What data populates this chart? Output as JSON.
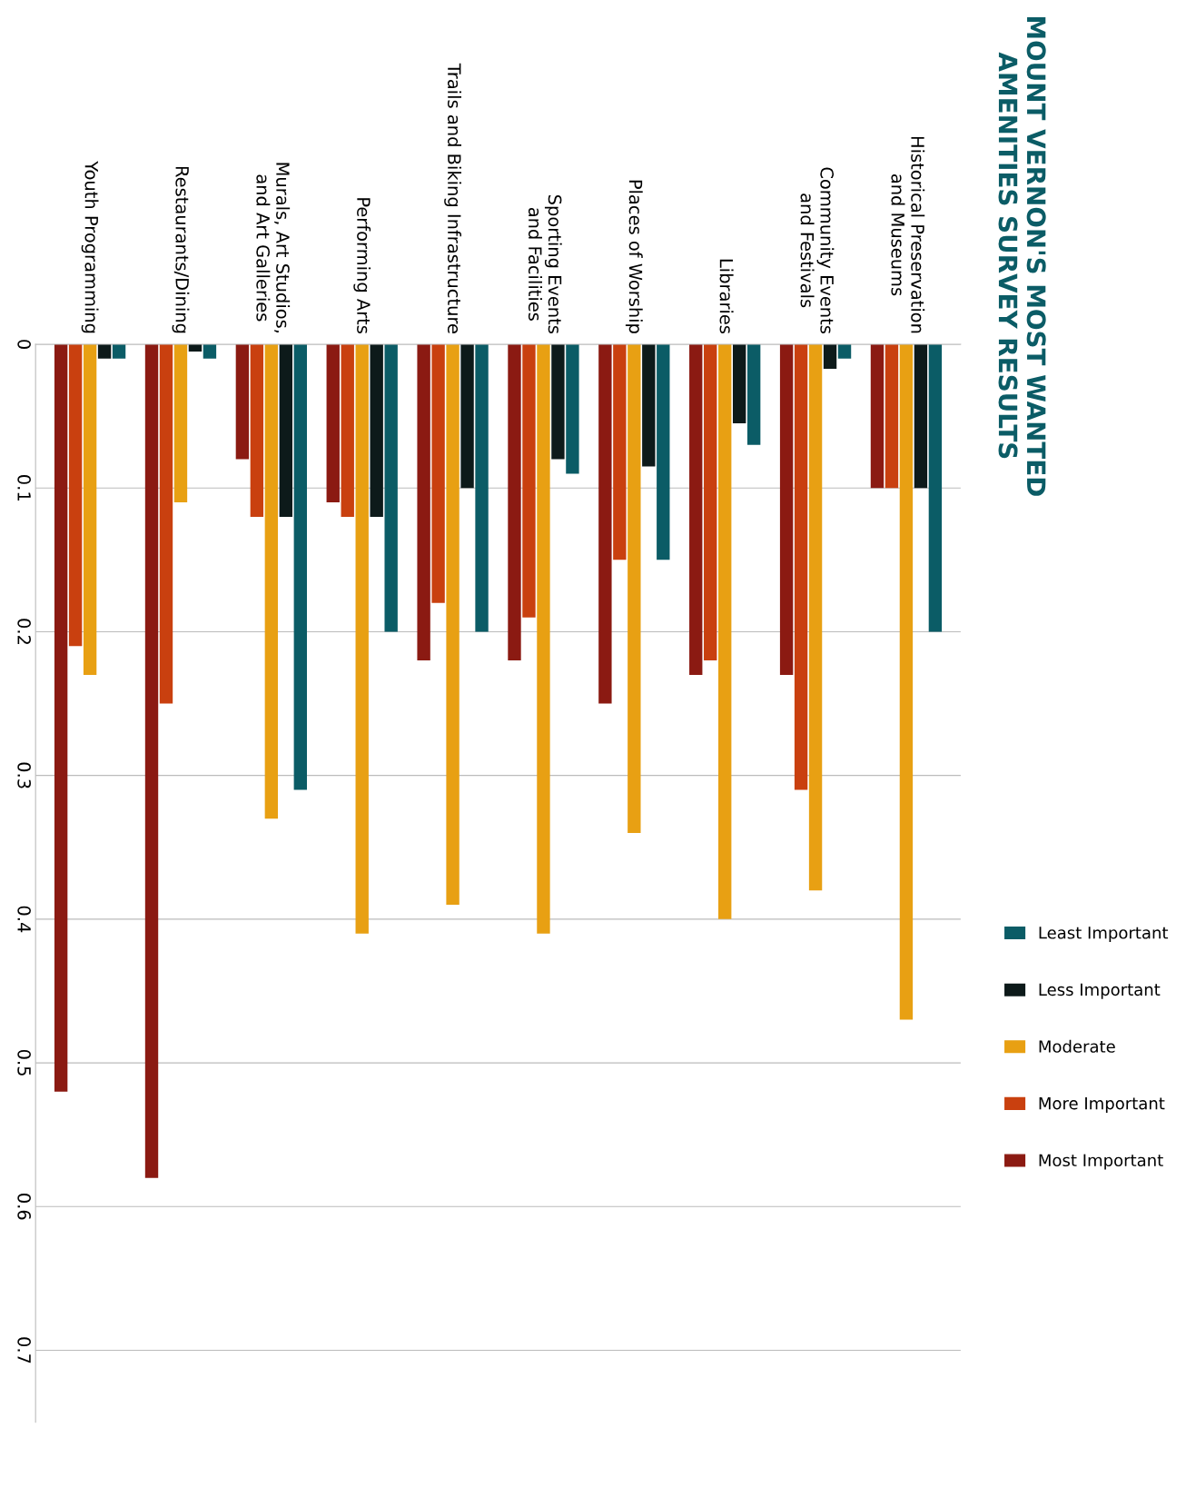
{
  "chart_data": {
    "type": "bar",
    "title": "MOUNT VERNON'S MOST WANTED\nAMENITIES SURVEY RESULTS",
    "categories": [
      "Youth Programming",
      "Restaurants/Dining",
      "Murals, Art Studios,\nand Art Galleries",
      "Performing Arts",
      "Trails and Biking Infrastructure",
      "Sporting Events\nand Facilities",
      "Places of Worship",
      "Libraries",
      "Community Events\nand Festivals",
      "Historical Preservation\nand Museums"
    ],
    "series": [
      {
        "name": "Most Important",
        "color": "#8b1a12",
        "values": [
          0.52,
          0.58,
          0.08,
          0.11,
          0.22,
          0.22,
          0.25,
          0.23,
          0.23,
          0.1
        ]
      },
      {
        "name": "More Important",
        "color": "#c9400f",
        "values": [
          0.21,
          0.25,
          0.12,
          0.12,
          0.18,
          0.19,
          0.15,
          0.22,
          0.31,
          0.1
        ]
      },
      {
        "name": "Moderate",
        "color": "#e8a013",
        "values": [
          0.23,
          0.11,
          0.33,
          0.41,
          0.39,
          0.41,
          0.34,
          0.4,
          0.38,
          0.47
        ]
      },
      {
        "name": "Less Important",
        "color": "#0d1a1a",
        "values": [
          0.01,
          0.005,
          0.12,
          0.12,
          0.1,
          0.08,
          0.085,
          0.055,
          0.017,
          0.1
        ]
      },
      {
        "name": "Least Important",
        "color": "#0b5c66",
        "values": [
          0.01,
          0.01,
          0.31,
          0.2,
          0.2,
          0.09,
          0.15,
          0.07,
          0.01,
          0.2
        ]
      }
    ],
    "ylim": [
      0.75,
      0
    ],
    "yticks": [
      0,
      0.1,
      0.2,
      0.3,
      0.4,
      0.5,
      0.6,
      0.7
    ],
    "grid": "y",
    "legend": "right"
  }
}
